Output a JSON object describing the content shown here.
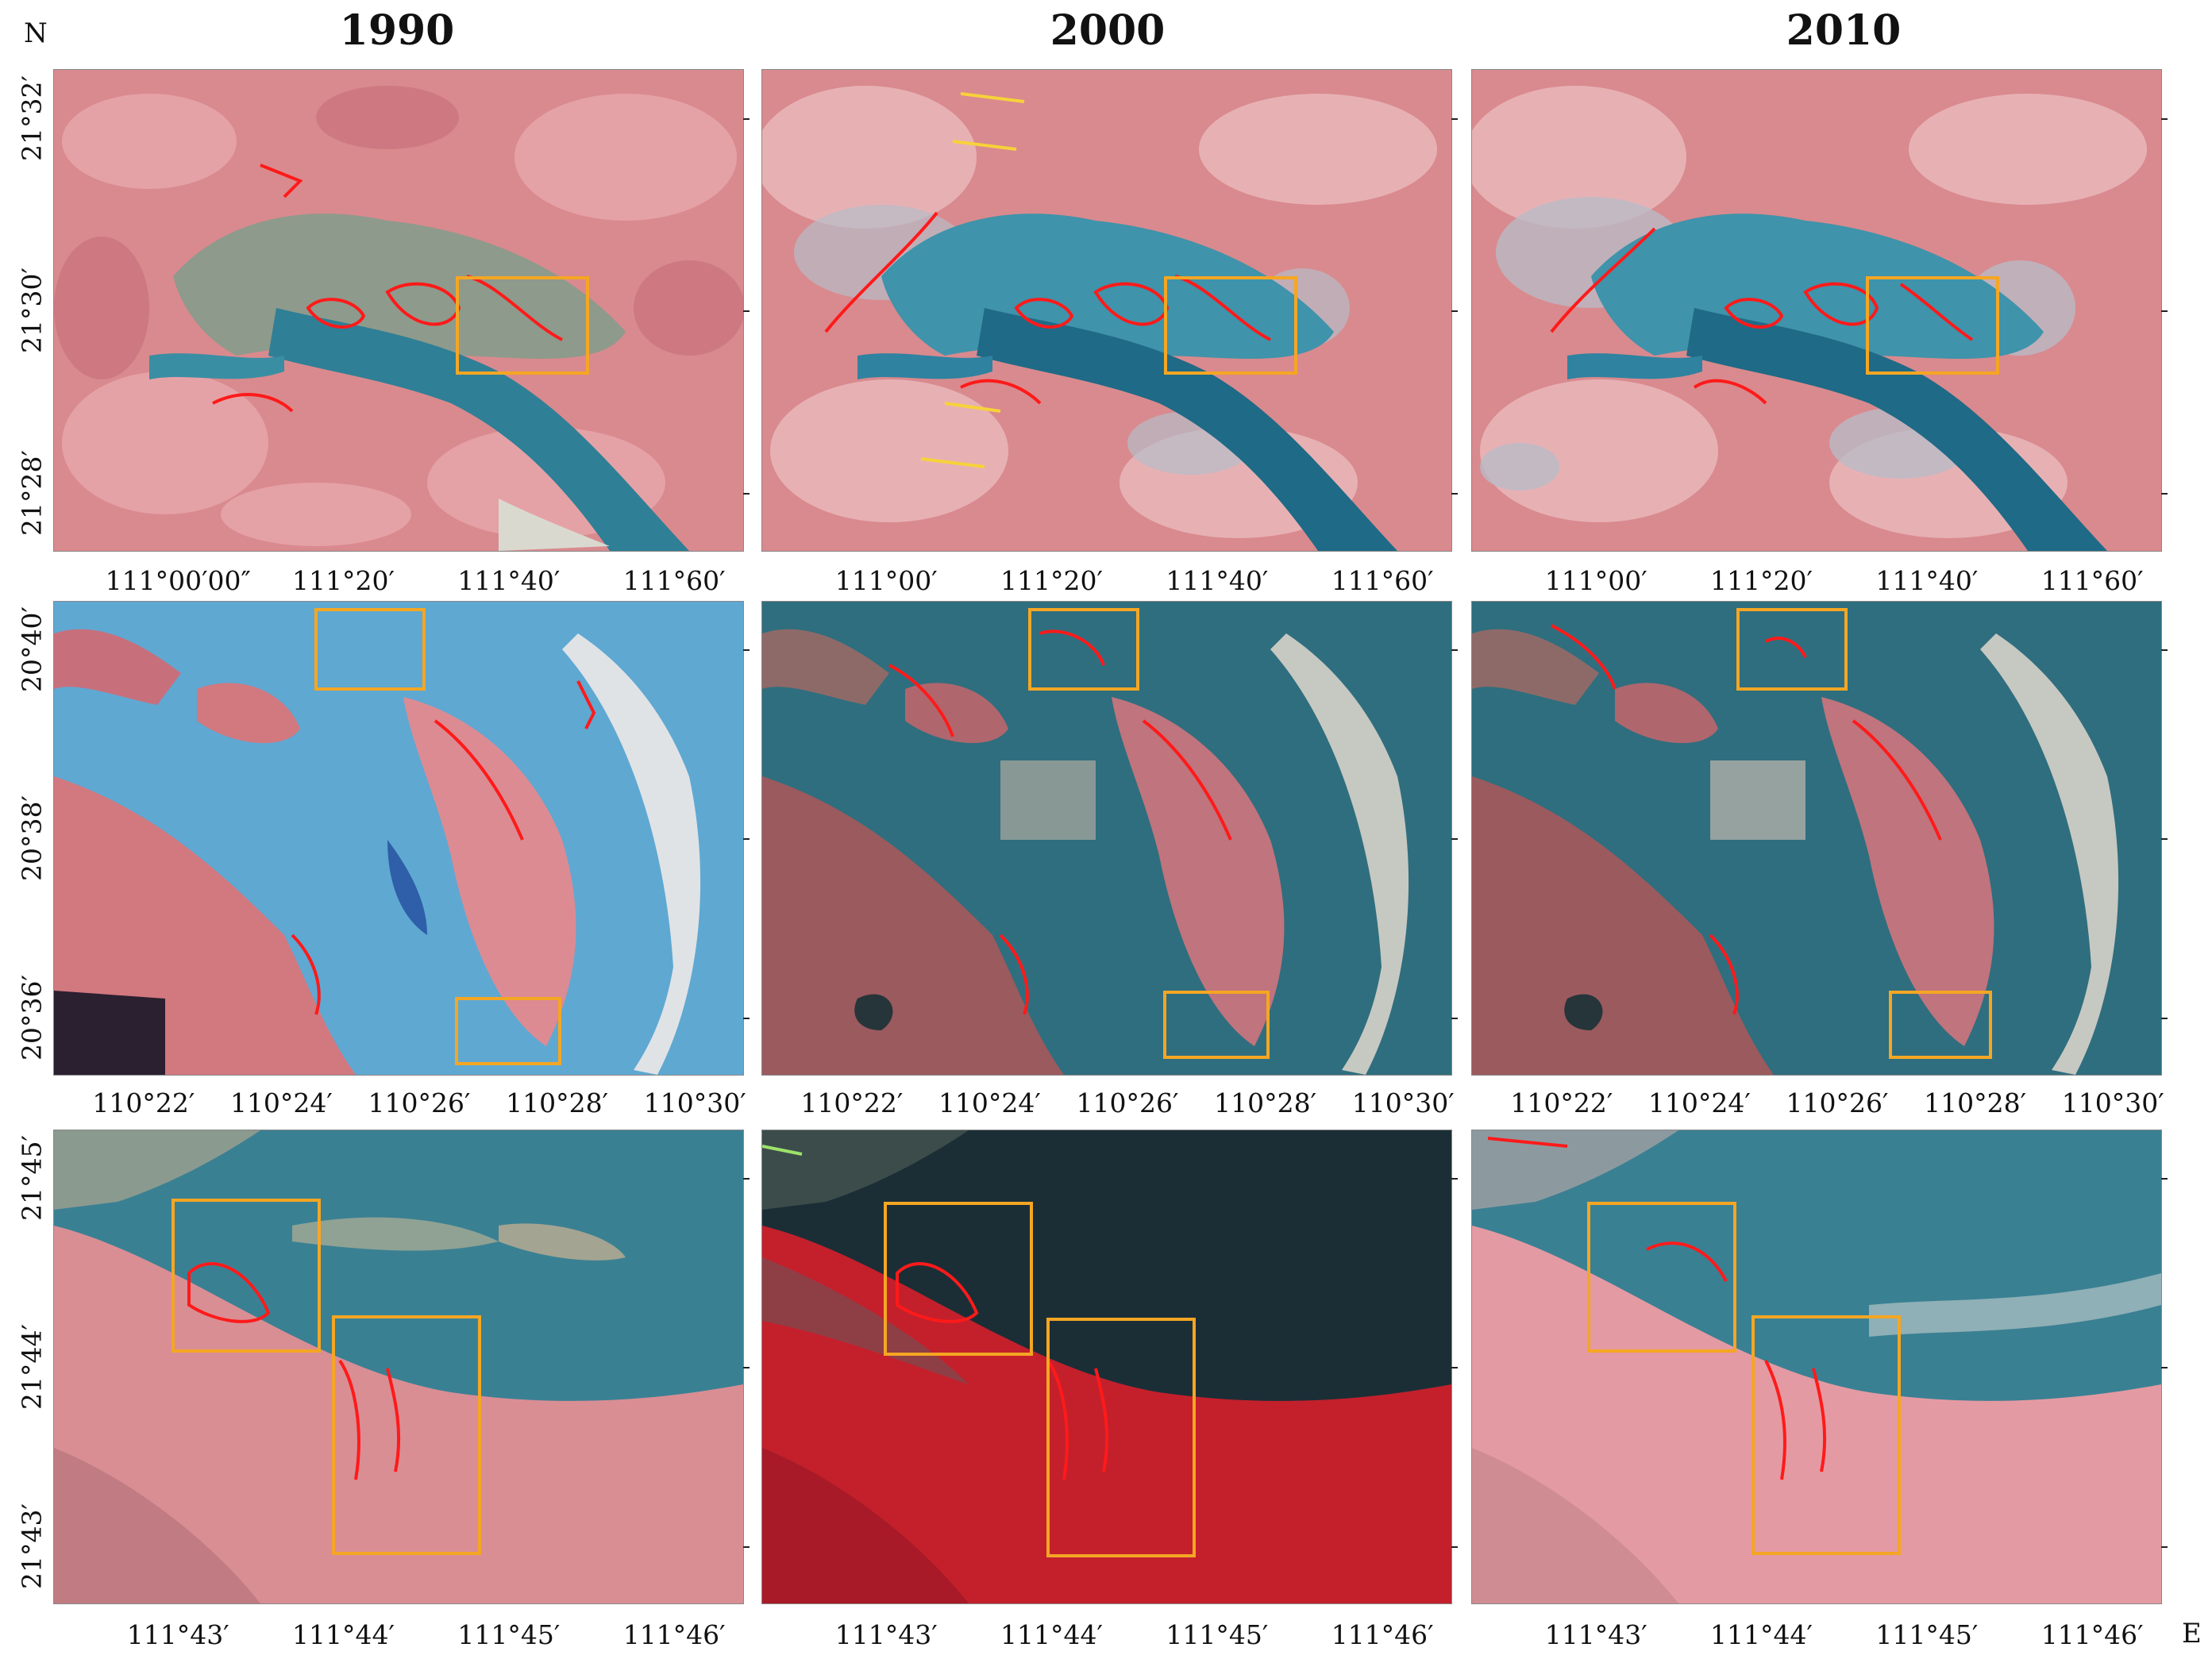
{
  "figure": {
    "north_label": "N",
    "east_label": "E",
    "years": [
      "1990",
      "2000",
      "2010"
    ],
    "colors": {
      "highlight_box": "#f5a623",
      "mangrove_outline": "#ff1a1a",
      "vegetation": "#e87a86",
      "water_turbid": "#2f7f96",
      "water_dark": "#0e3f55"
    },
    "rows": [
      {
        "lat_labels": [
          "21°32′",
          "21°30′",
          "21°28′"
        ],
        "lon_labels_by_year": [
          [
            "111°00′00″",
            "111°20′",
            "111°40′",
            "111°60′"
          ],
          [
            "111°00′",
            "111°20′",
            "111°40′",
            "111°60′"
          ],
          [
            "111°00′",
            "111°20′",
            "111°40′",
            "111°60′"
          ]
        ]
      },
      {
        "lat_labels": [
          "20°40′",
          "20°38′",
          "20°36′"
        ],
        "lon_labels_by_year": [
          [
            "110°22′",
            "110°24′",
            "110°26′",
            "110°28′",
            "110°30′"
          ],
          [
            "110°22′",
            "110°24′",
            "110°26′",
            "110°28′",
            "110°30′"
          ],
          [
            "110°22′",
            "110°24′",
            "110°26′",
            "110°28′",
            "110°30′"
          ]
        ]
      },
      {
        "lat_labels": [
          "21°45′",
          "21°44′",
          "21°43′"
        ],
        "lon_labels_by_year": [
          [
            "111°43′",
            "111°44′",
            "111°45′",
            "111°46′"
          ],
          [
            "111°43′",
            "111°44′",
            "111°45′",
            "111°46′"
          ],
          [
            "111°43′",
            "111°44′",
            "111°45′",
            "111°46′"
          ]
        ]
      }
    ]
  }
}
